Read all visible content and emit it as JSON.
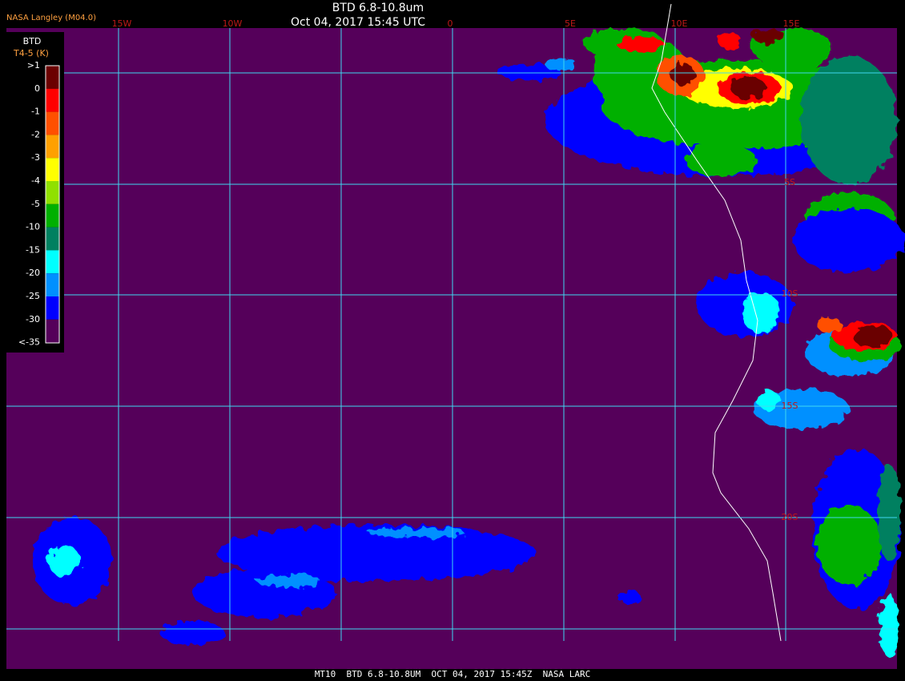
{
  "header": {
    "title": "BTD 6.8-10.8um",
    "timestamp": "Oct 04, 2017 15:45 UTC",
    "source": "NASA Langley (M04.0)"
  },
  "longitude_labels": [
    "15W",
    "10W",
    "0",
    "5E",
    "10E",
    "15E"
  ],
  "latitude_labels": [
    "5S",
    "10S",
    "15S",
    "20S"
  ],
  "legend": {
    "title": "BTD",
    "units": "T4-5 (K)",
    "labels": [
      ">1",
      "0",
      "-1",
      "-2",
      "-3",
      "-4",
      "-5",
      "-10",
      "-15",
      "-20",
      "-25",
      "-30",
      "<-35"
    ]
  },
  "footer": "MT10  BTD 6.8-10.8UM  OCT 04, 2017 15:45Z  NASA LARC"
}
